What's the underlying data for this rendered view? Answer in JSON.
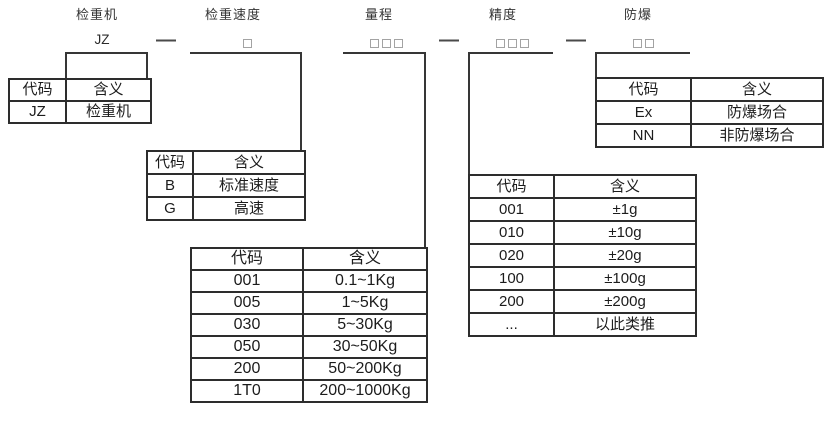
{
  "colors": {
    "background": "#ffffff",
    "line": "#363636",
    "table_border": "#2d2d2d",
    "text": "#1c1c1c",
    "label_text": "#333333",
    "square_border": "#a3a3a3",
    "dash": "#4a4a4a"
  },
  "separators": [
    "—",
    "—",
    "—"
  ],
  "fields": [
    {
      "label": "检重机",
      "code": "JZ",
      "squares": 0,
      "table": {
        "headers": [
          "代码",
          "含义"
        ],
        "rows": [
          [
            "JZ",
            "检重机"
          ]
        ]
      }
    },
    {
      "label": "检重速度",
      "squares": 1,
      "table": {
        "headers": [
          "代码",
          "含义"
        ],
        "rows": [
          [
            "B",
            "标准速度"
          ],
          [
            "G",
            "高速"
          ]
        ]
      }
    },
    {
      "label": "量程",
      "squares": 3,
      "table": {
        "headers": [
          "代码",
          "含义"
        ],
        "rows": [
          [
            "001",
            "0.1~1Kg"
          ],
          [
            "005",
            "1~5Kg"
          ],
          [
            "030",
            "5~30Kg"
          ],
          [
            "050",
            "30~50Kg"
          ],
          [
            "200",
            "50~200Kg"
          ],
          [
            "1T0",
            "200~1000Kg"
          ]
        ]
      }
    },
    {
      "label": "精度",
      "squares": 3,
      "table": {
        "headers": [
          "代码",
          "含义"
        ],
        "rows": [
          [
            "001",
            "±1g"
          ],
          [
            "010",
            "±10g"
          ],
          [
            "020",
            "±20g"
          ],
          [
            "100",
            "±100g"
          ],
          [
            "200",
            "±200g"
          ],
          [
            "...",
            "以此类推"
          ]
        ]
      }
    },
    {
      "label": "防爆",
      "squares": 2,
      "table": {
        "headers": [
          "代码",
          "含义"
        ],
        "rows": [
          [
            "Ex",
            "防爆场合"
          ],
          [
            "NN",
            "非防爆场合"
          ]
        ]
      }
    }
  ]
}
